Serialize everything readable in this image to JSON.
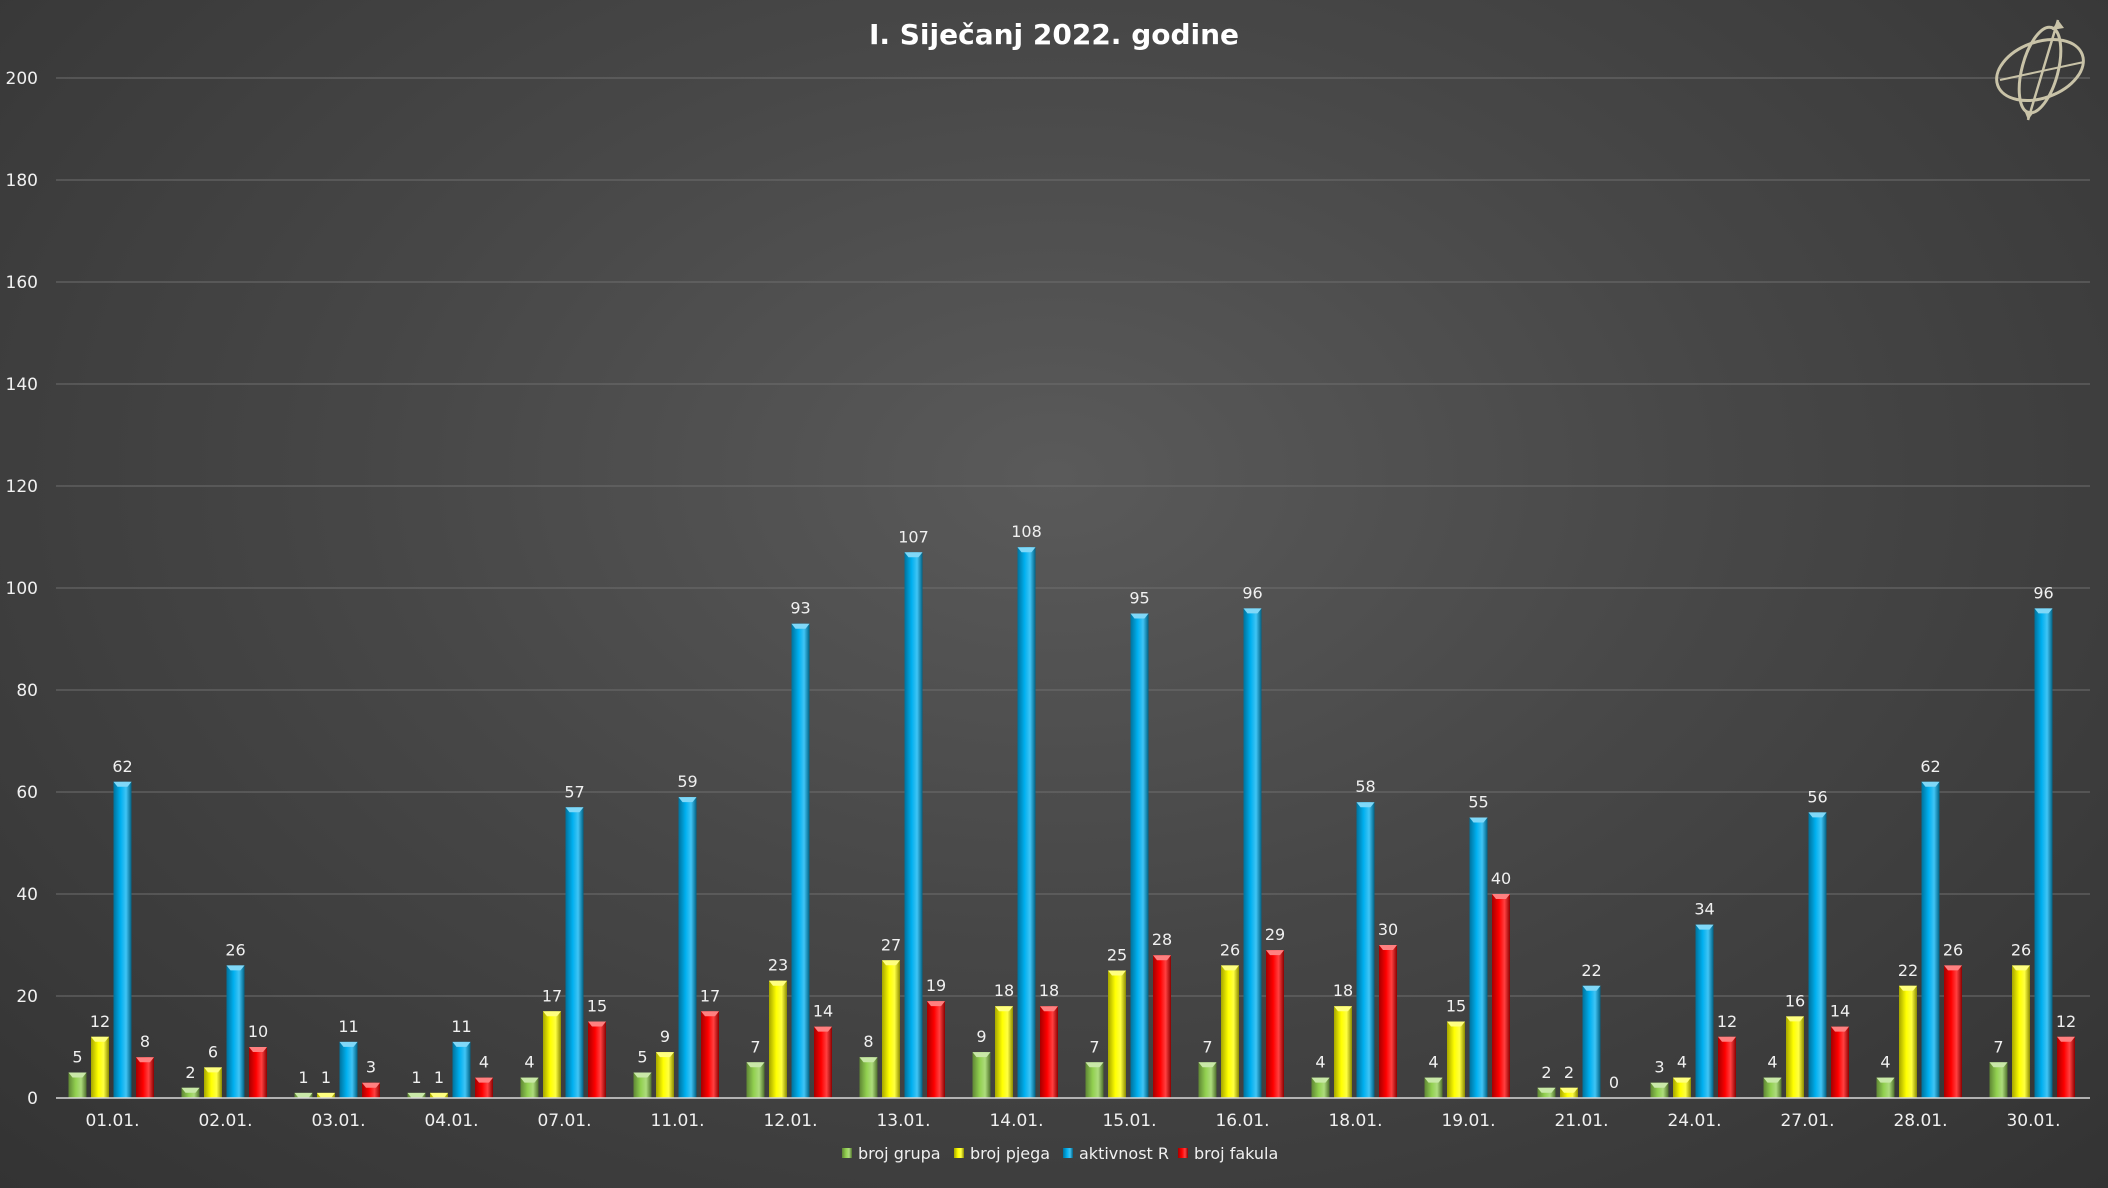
{
  "chart_data": {
    "type": "bar",
    "title": "I. Siječanj 2022. godine",
    "xlabel": "",
    "ylabel": "",
    "ylim": [
      0,
      200
    ],
    "yticks": [
      0,
      20,
      40,
      60,
      80,
      100,
      120,
      140,
      160,
      180,
      200
    ],
    "grid": true,
    "legend_position": "bottom",
    "categories": [
      "01.01.",
      "02.01.",
      "03.01.",
      "04.01.",
      "07.01.",
      "11.01.",
      "12.01.",
      "13.01.",
      "14.01.",
      "15.01.",
      "16.01.",
      "18.01.",
      "19.01.",
      "21.01.",
      "24.01.",
      "27.01.",
      "28.01.",
      "30.01."
    ],
    "series": [
      {
        "name": "broj grupa",
        "color": "#92d050",
        "values": [
          5,
          2,
          1,
          1,
          4,
          5,
          7,
          8,
          9,
          7,
          7,
          4,
          4,
          2,
          3,
          4,
          4,
          7
        ]
      },
      {
        "name": "broj pjega",
        "color": "#ffff00",
        "values": [
          12,
          6,
          1,
          1,
          17,
          9,
          23,
          27,
          18,
          25,
          26,
          18,
          15,
          2,
          4,
          16,
          22,
          26
        ]
      },
      {
        "name": "aktivnost R",
        "color": "#00b0f0",
        "values": [
          62,
          26,
          11,
          11,
          57,
          59,
          93,
          107,
          108,
          95,
          96,
          58,
          55,
          22,
          34,
          56,
          62,
          96
        ]
      },
      {
        "name": "broj fakula",
        "color": "#ff0000",
        "values": [
          8,
          10,
          3,
          4,
          15,
          17,
          14,
          19,
          18,
          28,
          29,
          30,
          40,
          0,
          12,
          14,
          26,
          12
        ]
      }
    ]
  },
  "logo": {
    "icon": "armillary-sphere-icon",
    "color": "#c9c3a8"
  }
}
